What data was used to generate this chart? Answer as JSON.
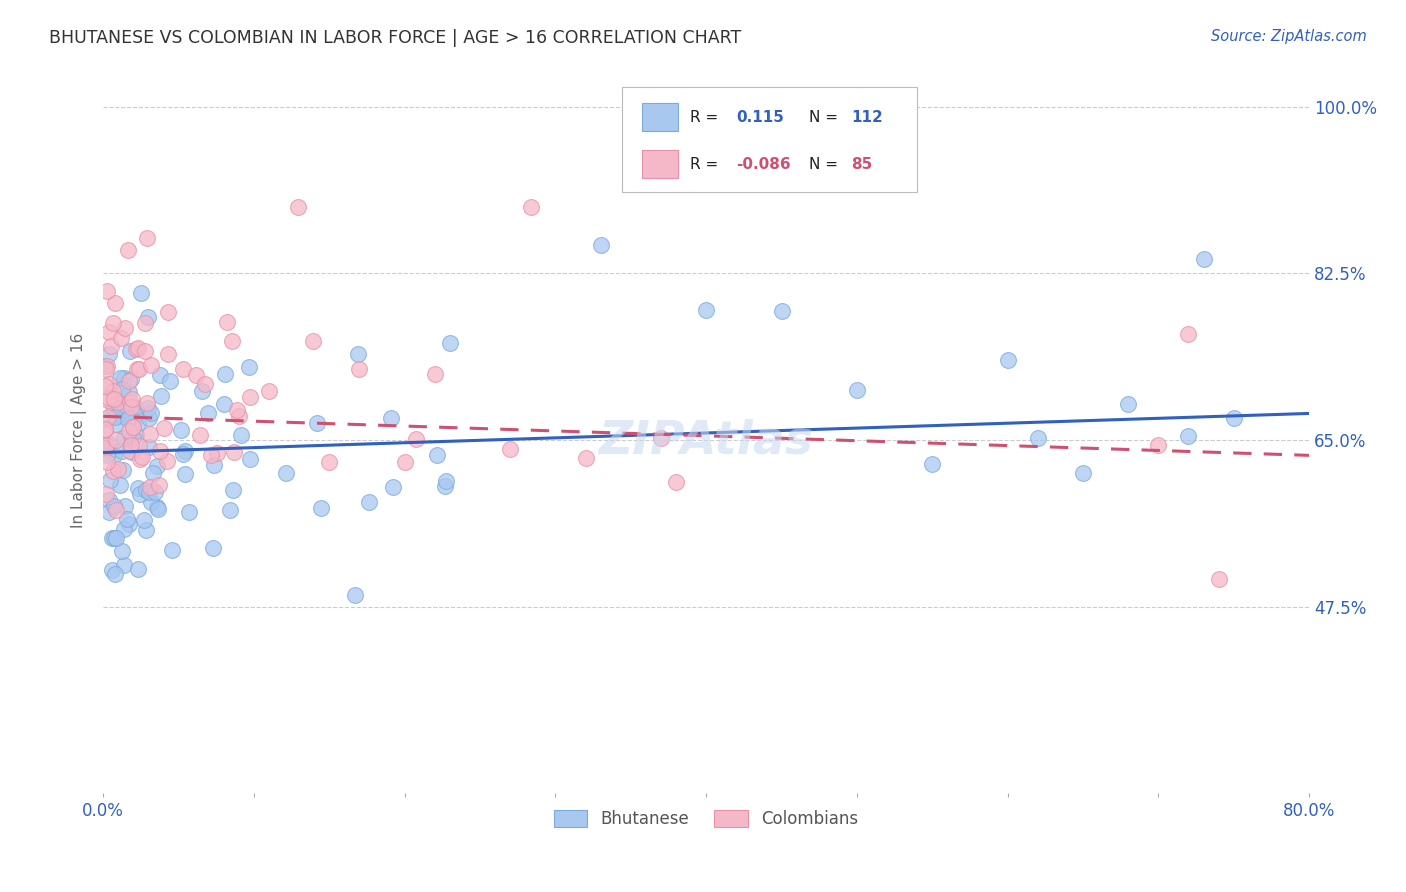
{
  "title": "BHUTANESE VS COLOMBIAN IN LABOR FORCE | AGE > 16 CORRELATION CHART",
  "source": "Source: ZipAtlas.com",
  "ylabel": "In Labor Force | Age > 16",
  "xlim": [
    0.0,
    0.8
  ],
  "ylim": [
    0.28,
    1.04
  ],
  "yticks": [
    0.475,
    0.65,
    0.825,
    1.0
  ],
  "ytick_labels": [
    "47.5%",
    "65.0%",
    "82.5%",
    "100.0%"
  ],
  "xticks": [
    0.0,
    0.1,
    0.2,
    0.3,
    0.4,
    0.5,
    0.6,
    0.7,
    0.8
  ],
  "xtick_labels": [
    "0.0%",
    "",
    "",
    "",
    "",
    "",
    "",
    "",
    "80.0%"
  ],
  "blue_color": "#a8c8f0",
  "pink_color": "#f5b8c8",
  "blue_edge_color": "#7aaadc",
  "pink_edge_color": "#e890a8",
  "blue_line_color": "#3060c0",
  "pink_line_color": "#d05070",
  "R_blue": 0.115,
  "N_blue": 112,
  "R_pink": -0.086,
  "N_pink": 85,
  "legend_label_blue": "Bhutanese",
  "legend_label_pink": "Colombians",
  "bg_color": "#ffffff",
  "grid_color": "#cccccc",
  "title_color": "#333333",
  "axis_label_color": "#3060c0",
  "source_color": "#3060c0",
  "blue_line_start_y": 0.637,
  "blue_line_end_y": 0.678,
  "pink_line_start_y": 0.675,
  "pink_line_end_y": 0.634
}
